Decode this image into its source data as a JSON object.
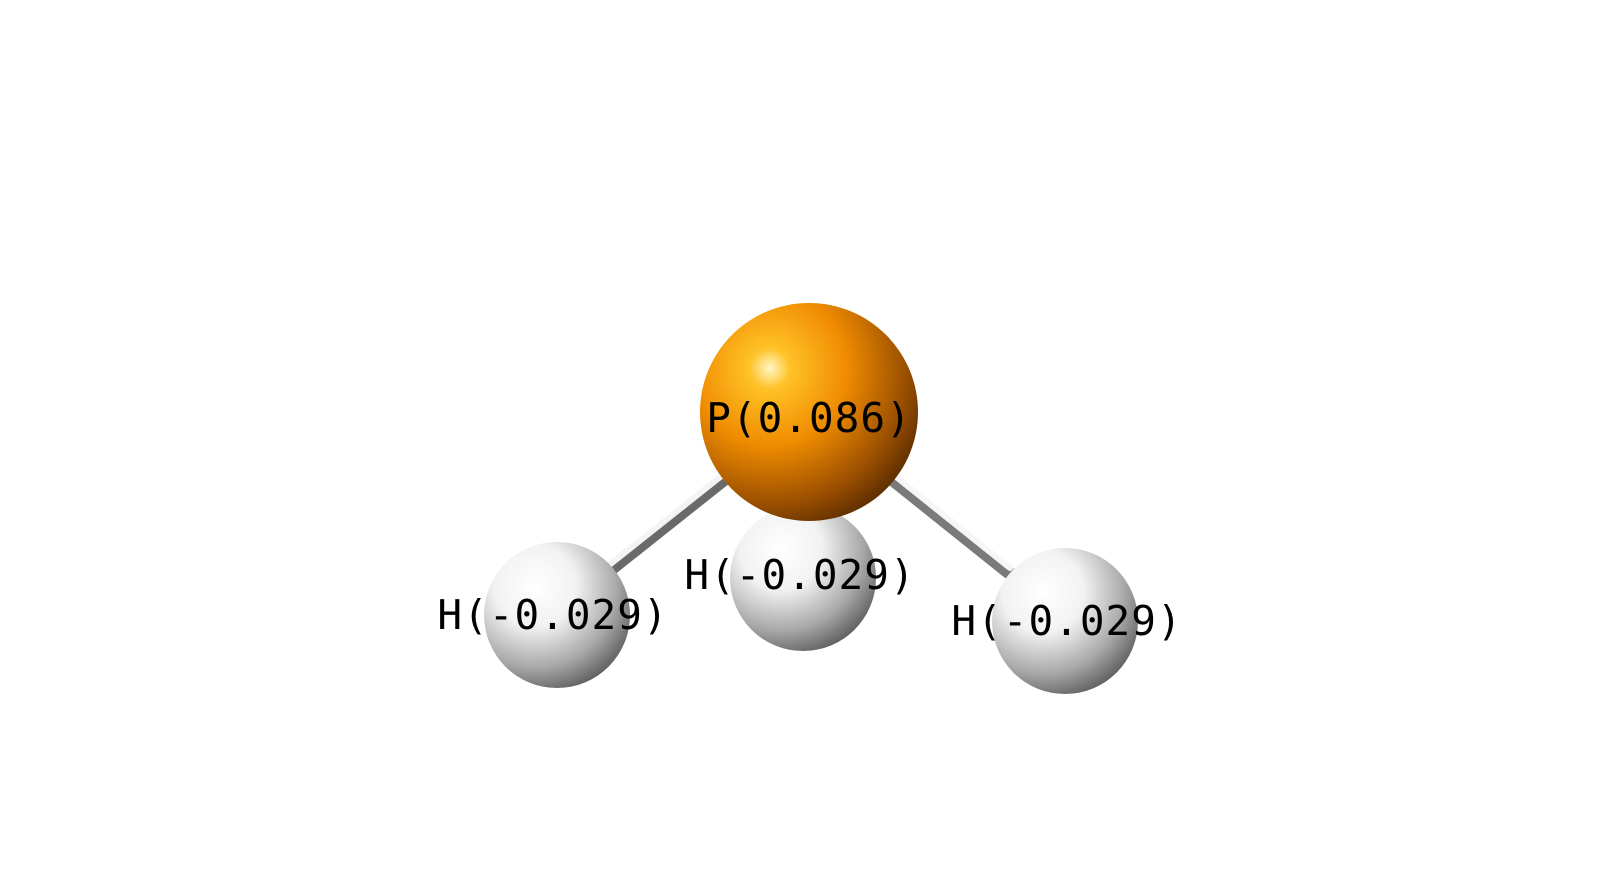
{
  "molecule": {
    "atoms": [
      {
        "id": "p1",
        "element": "P",
        "label": "P(0.086)",
        "color": "#f08c00"
      },
      {
        "id": "h1",
        "element": "H",
        "label": "H(-0.029)",
        "color": "#e8e8e8"
      },
      {
        "id": "h2",
        "element": "H",
        "label": "H(-0.029)",
        "color": "#e8e8e8"
      },
      {
        "id": "h3",
        "element": "H",
        "label": "H(-0.029)",
        "color": "#e8e8e8"
      }
    ],
    "bonds": [
      {
        "from": "p1",
        "to": "h1"
      },
      {
        "from": "p1",
        "to": "h2"
      },
      {
        "from": "p1",
        "to": "h3"
      }
    ]
  }
}
